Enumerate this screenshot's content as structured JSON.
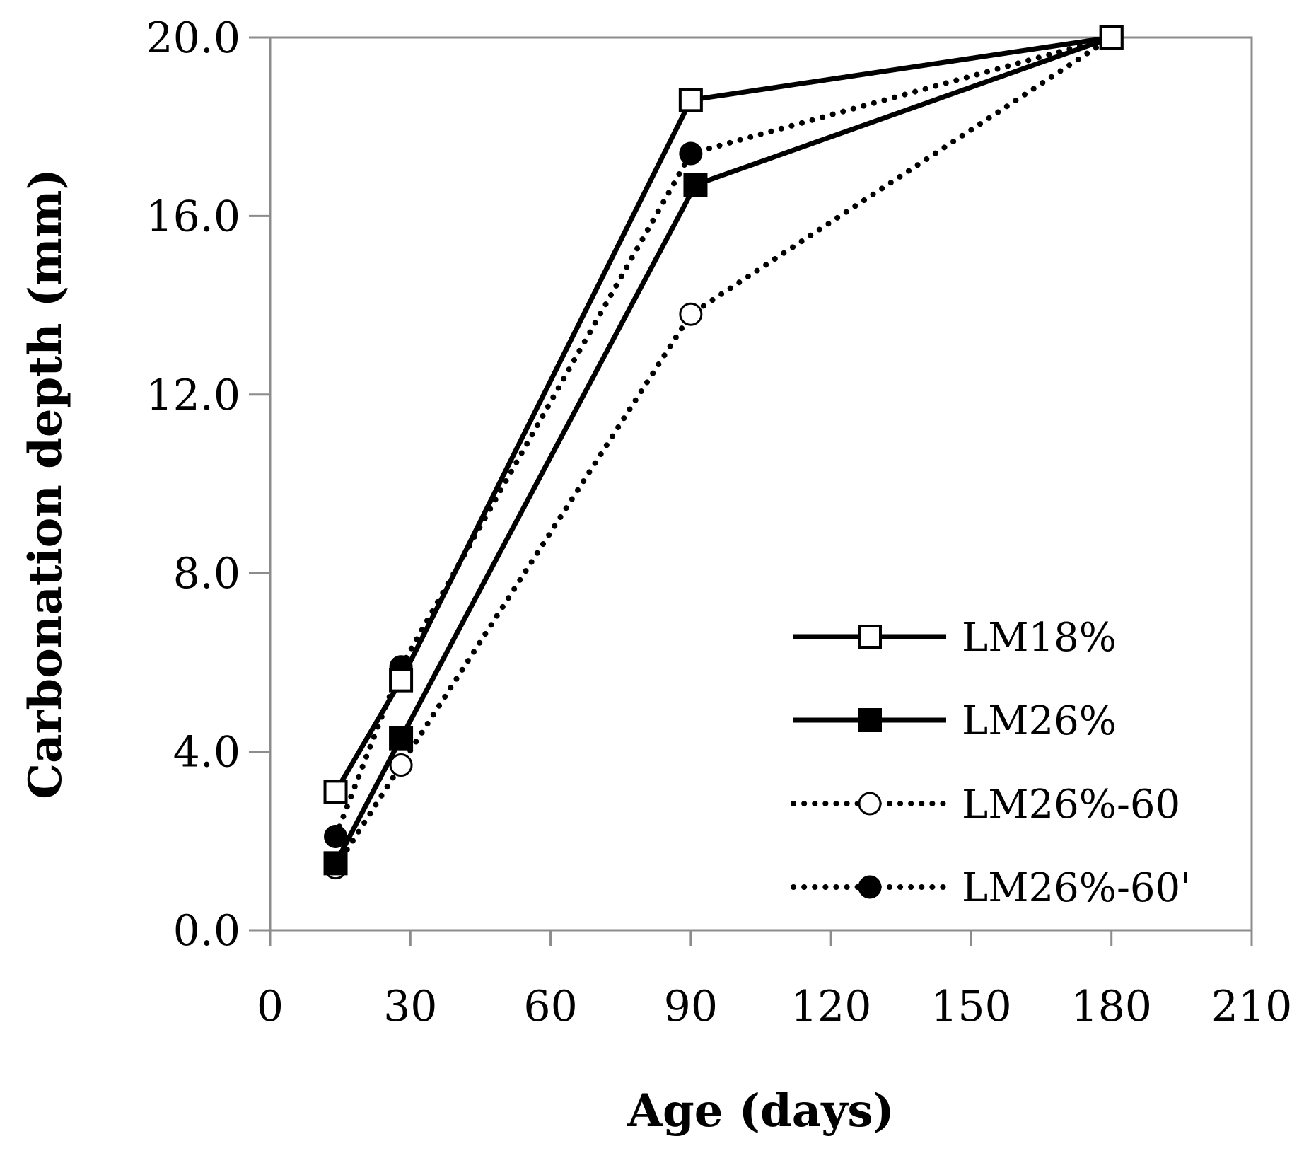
{
  "chart_data": {
    "type": "line",
    "title": "",
    "xlabel": "Age (days)",
    "ylabel": "Carbonation depth (mm)",
    "xlim": [
      0,
      210
    ],
    "ylim": [
      0,
      20
    ],
    "xticks": [
      0,
      30,
      60,
      90,
      120,
      150,
      180,
      210
    ],
    "yticks": [
      0,
      4,
      8,
      12,
      16,
      20
    ],
    "xtick_labels": [
      "0",
      "30",
      "60",
      "90",
      "120",
      "150",
      "180",
      "210"
    ],
    "ytick_labels": [
      "0.0",
      "4.0",
      "8.0",
      "12.0",
      "16.0",
      "20.0"
    ],
    "grid": false,
    "legend_position": "bottom-right",
    "series": [
      {
        "name": "LM18%",
        "line": "solid",
        "marker": "square",
        "filled": false,
        "x": [
          14,
          28,
          90,
          180
        ],
        "y": [
          3.1,
          5.6,
          18.6,
          20.0
        ]
      },
      {
        "name": "LM26%",
        "line": "solid",
        "marker": "square",
        "filled": true,
        "x": [
          14,
          28,
          91,
          180
        ],
        "y": [
          1.5,
          4.3,
          16.7,
          20.0
        ]
      },
      {
        "name": "LM26%-60",
        "line": "dotted",
        "marker": "circle",
        "filled": false,
        "x": [
          14,
          28,
          90,
          180
        ],
        "y": [
          1.4,
          3.7,
          13.8,
          20.0
        ]
      },
      {
        "name": "LM26%-60'",
        "line": "dotted",
        "marker": "circle",
        "filled": true,
        "x": [
          14,
          28,
          90,
          180
        ],
        "y": [
          2.1,
          5.9,
          17.4,
          20.0
        ]
      }
    ]
  }
}
